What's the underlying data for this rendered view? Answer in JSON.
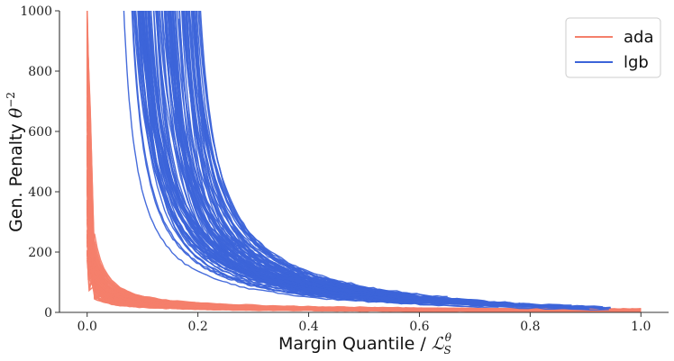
{
  "chart_data": {
    "type": "line",
    "xlabel": "Margin Quantile / ℒ_S^θ",
    "ylabel": "Gen. Penalty θ⁻²",
    "xlim": [
      -0.05,
      1.05
    ],
    "ylim": [
      0,
      1000
    ],
    "x_ticks": [
      "0.0",
      "0.2",
      "0.4",
      "0.6",
      "0.8",
      "1.0"
    ],
    "y_ticks": [
      "0",
      "200",
      "400",
      "600",
      "800",
      "1000"
    ],
    "grid": false,
    "legend_position": "top-right",
    "series": [
      {
        "name": "ada",
        "color": "#f4806b",
        "count": 100,
        "representative": {
          "x": [
            0.0,
            0.01,
            0.02,
            0.05,
            0.1,
            0.2,
            0.3,
            0.4,
            0.5,
            0.6,
            0.7,
            0.8,
            0.9,
            1.0
          ],
          "y": [
            260,
            220,
            200,
            170,
            140,
            110,
            90,
            75,
            62,
            50,
            40,
            30,
            20,
            8
          ]
        }
      },
      {
        "name": "lgb",
        "color": "#3c64d9",
        "count": 100,
        "representative": {
          "x": [
            0.09,
            0.1,
            0.12,
            0.15,
            0.2,
            0.25,
            0.3,
            0.35,
            0.4,
            0.5,
            0.6,
            0.7,
            0.8
          ],
          "y": [
            1000,
            850,
            650,
            480,
            330,
            240,
            180,
            140,
            100,
            70,
            55,
            42,
            30
          ]
        }
      }
    ]
  }
}
